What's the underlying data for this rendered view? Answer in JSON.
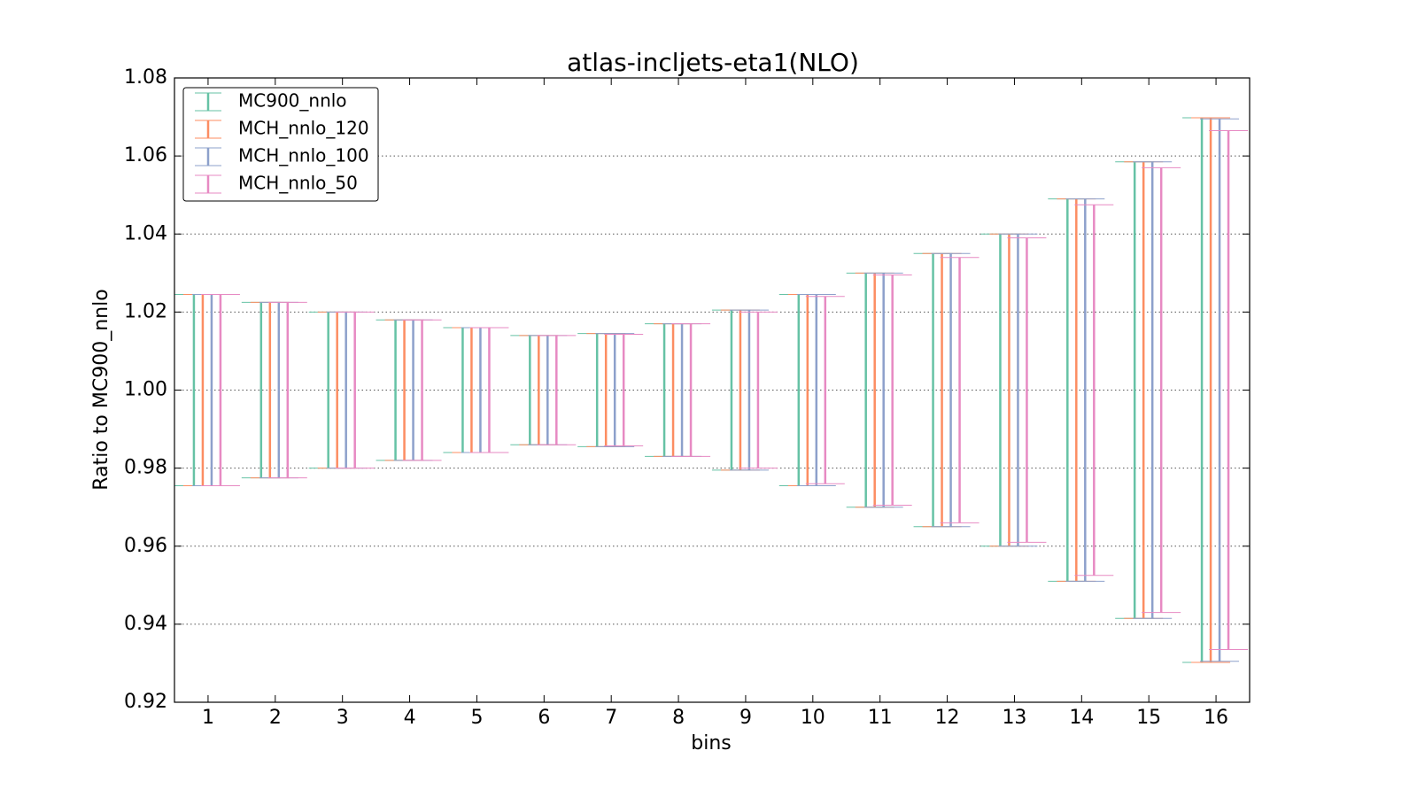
{
  "chart_data": {
    "type": "errorbar",
    "title": "atlas-incljets-eta1(NLO)",
    "xlabel": "bins",
    "ylabel": "Ratio to MC900_nnlo",
    "categories": [
      "1",
      "2",
      "3",
      "4",
      "5",
      "6",
      "7",
      "8",
      "9",
      "10",
      "11",
      "12",
      "13",
      "14",
      "15",
      "16"
    ],
    "series": [
      {
        "name": "MC900_nnlo",
        "color": "#66c2a5",
        "values": [
          1,
          1,
          1,
          1,
          1,
          1,
          1,
          1,
          1,
          1,
          1,
          1,
          1,
          1,
          1,
          1
        ],
        "errors": [
          0.0245,
          0.0225,
          0.02,
          0.018,
          0.016,
          0.014,
          0.0145,
          0.017,
          0.0205,
          0.0245,
          0.03,
          0.035,
          0.04,
          0.049,
          0.0585,
          0.0698
        ]
      },
      {
        "name": "MCH_nnlo_120",
        "color": "#fc8d62",
        "values": [
          1,
          1,
          1,
          1,
          1,
          1,
          1,
          1,
          1,
          1,
          1,
          1,
          1,
          1,
          1,
          1
        ],
        "errors": [
          0.0245,
          0.0225,
          0.02,
          0.018,
          0.016,
          0.014,
          0.0145,
          0.017,
          0.0205,
          0.0245,
          0.03,
          0.035,
          0.04,
          0.049,
          0.0585,
          0.0698
        ]
      },
      {
        "name": "MCH_nnlo_100",
        "color": "#8da0cb",
        "values": [
          1,
          1,
          1,
          1,
          1,
          1,
          1,
          1,
          1,
          1,
          1,
          1,
          1,
          1,
          1,
          1
        ],
        "errors": [
          0.0245,
          0.0225,
          0.02,
          0.018,
          0.016,
          0.014,
          0.0145,
          0.017,
          0.0205,
          0.0245,
          0.03,
          0.035,
          0.04,
          0.049,
          0.0585,
          0.0695
        ]
      },
      {
        "name": "MCH_nnlo_50",
        "color": "#e78ac3",
        "values": [
          1,
          1,
          1,
          1,
          1,
          1,
          1,
          1,
          1,
          1,
          1,
          1,
          1,
          1,
          1,
          1
        ],
        "errors": [
          0.0245,
          0.0225,
          0.02,
          0.018,
          0.016,
          0.014,
          0.0143,
          0.017,
          0.02,
          0.024,
          0.0295,
          0.034,
          0.039,
          0.0475,
          0.057,
          0.0665
        ]
      }
    ],
    "ylim": [
      0.92,
      1.08
    ],
    "yticks": [
      0.92,
      0.94,
      0.96,
      0.98,
      {
        "value": 1.0,
        "label": "1.00"
      },
      1.02,
      1.04,
      1.06,
      1.08
    ],
    "grid": true,
    "legend": "upper left"
  }
}
